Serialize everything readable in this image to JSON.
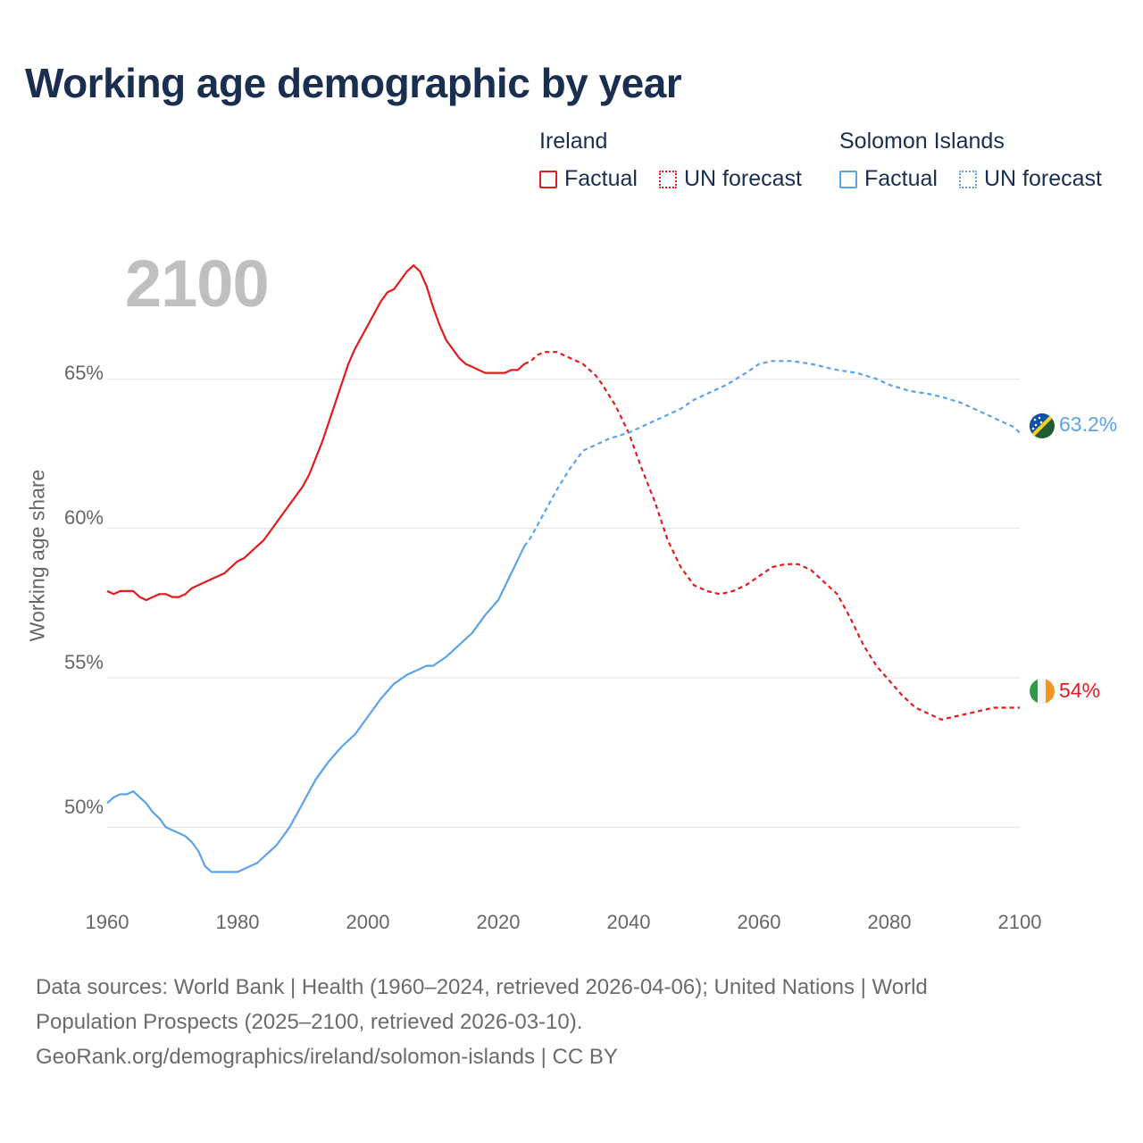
{
  "title": "Working age demographic by year",
  "year_label": "2100",
  "legend": {
    "groups": [
      {
        "name": "Ireland",
        "color": "#e41a1c",
        "factual": "Factual",
        "forecast": "UN forecast"
      },
      {
        "name": "Solomon Islands",
        "color": "#5ba3e6",
        "factual": "Factual",
        "forecast": "UN forecast"
      }
    ]
  },
  "footer": {
    "line1": "Data sources: World Bank | Health (1960–2024, retrieved 2026-04-06); United Nations | World",
    "line2": "Population Prospects (2025–2100, retrieved 2026-03-10).",
    "line3": "GeoRank.org/demographics/ireland/solomon-islands | CC BY"
  },
  "end_labels": {
    "solomon": "63.2%",
    "ireland": "54%"
  },
  "icons": {
    "solomon_flag": "solomon-islands-flag-icon",
    "ireland_flag": "ireland-flag-icon"
  },
  "chart_data": {
    "type": "line",
    "title": "Working age demographic by year",
    "xlabel": "",
    "ylabel": "Working age share",
    "xlim": [
      1960,
      2100
    ],
    "ylim": [
      47.5,
      70
    ],
    "x_ticks": [
      {
        "value": 1960,
        "label": "1960"
      },
      {
        "value": 1980,
        "label": "1980"
      },
      {
        "value": 2000,
        "label": "2000"
      },
      {
        "value": 2020,
        "label": "2020"
      },
      {
        "value": 2040,
        "label": "2040"
      },
      {
        "value": 2060,
        "label": "2060"
      },
      {
        "value": 2080,
        "label": "2080"
      },
      {
        "value": 2100,
        "label": "2100"
      }
    ],
    "y_ticks": [
      {
        "value": 50,
        "label": "50%"
      },
      {
        "value": 55,
        "label": "55%"
      },
      {
        "value": 60,
        "label": "60%"
      },
      {
        "value": 65,
        "label": "65%"
      }
    ],
    "grid": true,
    "series": [
      {
        "name": "Ireland",
        "color": "#e41a1c",
        "forecast_start": 2024,
        "x": [
          1960,
          1961,
          1962,
          1963,
          1964,
          1965,
          1966,
          1967,
          1968,
          1969,
          1970,
          1971,
          1972,
          1973,
          1975,
          1978,
          1980,
          1981,
          1983,
          1984,
          1986,
          1988,
          1990,
          1991,
          1993,
          1995,
          1997,
          1998,
          2000,
          2002,
          2003,
          2004,
          2006,
          2007,
          2008,
          2009,
          2010,
          2011,
          2012,
          2013,
          2014,
          2015,
          2016,
          2018,
          2021,
          2022,
          2023,
          2024,
          2025,
          2026,
          2027,
          2028,
          2029,
          2030,
          2031,
          2033,
          2035,
          2036,
          2038,
          2040,
          2042,
          2044,
          2046,
          2048,
          2050,
          2052,
          2054,
          2056,
          2058,
          2060,
          2062,
          2064,
          2066,
          2068,
          2070,
          2072,
          2074,
          2076,
          2078,
          2080,
          2082,
          2084,
          2086,
          2088,
          2090,
          2092,
          2094,
          2096,
          2098,
          2100
        ],
        "y": [
          57.9,
          57.8,
          57.9,
          57.9,
          57.9,
          57.7,
          57.6,
          57.7,
          57.8,
          57.8,
          57.7,
          57.7,
          57.8,
          58.0,
          58.2,
          58.5,
          58.9,
          59.0,
          59.4,
          59.6,
          60.2,
          60.8,
          61.4,
          61.8,
          62.9,
          64.2,
          65.5,
          66.0,
          66.8,
          67.6,
          67.9,
          68.0,
          68.6,
          68.8,
          68.6,
          68.1,
          67.4,
          66.8,
          66.3,
          66.0,
          65.7,
          65.5,
          65.4,
          65.2,
          65.2,
          65.3,
          65.3,
          65.5,
          65.6,
          65.8,
          65.9,
          65.9,
          65.9,
          65.8,
          65.7,
          65.5,
          65.1,
          64.8,
          64.1,
          63.2,
          62.0,
          60.9,
          59.6,
          58.7,
          58.1,
          57.9,
          57.8,
          57.9,
          58.1,
          58.4,
          58.7,
          58.8,
          58.8,
          58.6,
          58.2,
          57.8,
          57.0,
          56.1,
          55.4,
          54.9,
          54.4,
          54.0,
          53.8,
          53.6,
          53.7,
          53.8,
          53.9,
          54.0,
          54.0,
          54.0
        ]
      },
      {
        "name": "Solomon Islands",
        "color": "#5ba3e6",
        "forecast_start": 2024,
        "x": [
          1960,
          1961,
          1962,
          1963,
          1964,
          1965,
          1966,
          1967,
          1968,
          1969,
          1970,
          1971,
          1972,
          1973,
          1974,
          1975,
          1976,
          1977,
          1980,
          1982,
          1983,
          1985,
          1986,
          1988,
          1990,
          1992,
          1994,
          1996,
          1998,
          2000,
          2002,
          2004,
          2006,
          2007,
          2008,
          2009,
          2010,
          2012,
          2014,
          2016,
          2018,
          2020,
          2022,
          2024,
          2025,
          2027,
          2029,
          2031,
          2033,
          2035,
          2037,
          2040,
          2043,
          2046,
          2048,
          2050,
          2052,
          2055,
          2058,
          2060,
          2062,
          2065,
          2068,
          2070,
          2072,
          2075,
          2078,
          2080,
          2083,
          2086,
          2088,
          2091,
          2094,
          2097,
          2099,
          2100
        ],
        "y": [
          50.8,
          51.0,
          51.1,
          51.1,
          51.2,
          51.0,
          50.8,
          50.5,
          50.3,
          50.0,
          49.9,
          49.8,
          49.7,
          49.5,
          49.2,
          48.7,
          48.5,
          48.5,
          48.5,
          48.7,
          48.8,
          49.2,
          49.4,
          50.0,
          50.8,
          51.6,
          52.2,
          52.7,
          53.1,
          53.7,
          54.3,
          54.8,
          55.1,
          55.2,
          55.3,
          55.4,
          55.4,
          55.7,
          56.1,
          56.5,
          57.1,
          57.6,
          58.5,
          59.4,
          59.7,
          60.5,
          61.3,
          62.0,
          62.6,
          62.8,
          63.0,
          63.2,
          63.5,
          63.8,
          64.0,
          64.3,
          64.5,
          64.8,
          65.2,
          65.5,
          65.6,
          65.6,
          65.5,
          65.4,
          65.3,
          65.2,
          65.0,
          64.8,
          64.6,
          64.5,
          64.4,
          64.2,
          63.9,
          63.6,
          63.4,
          63.2
        ]
      }
    ]
  }
}
